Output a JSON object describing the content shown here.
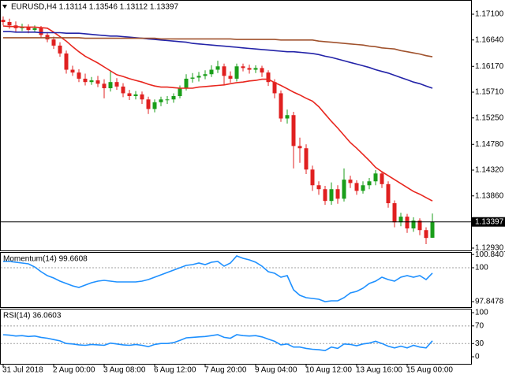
{
  "chart_data": [
    {
      "type": "candlestick",
      "title": "EURUSD,H4  1.13114 1.13546 1.13112 1.13397",
      "categories": [
        "31 Jul 2018",
        null,
        null,
        null,
        null,
        null,
        null,
        null,
        "2 Aug 00:00",
        null,
        null,
        null,
        null,
        null,
        null,
        null,
        "3 Aug 08:00",
        null,
        null,
        null,
        null,
        null,
        null,
        null,
        "6 Aug 12:00",
        null,
        null,
        null,
        null,
        null,
        null,
        null,
        "7 Aug 20:00",
        null,
        null,
        null,
        null,
        null,
        null,
        null,
        "9 Aug 04:00",
        null,
        null,
        null,
        null,
        null,
        null,
        null,
        "10 Aug 12:00",
        null,
        null,
        null,
        null,
        null,
        null,
        null,
        "13 Aug 16:00",
        null,
        null,
        null,
        null,
        null,
        null,
        null,
        "15 Aug 00:00",
        null,
        null,
        null,
        null
      ],
      "open": [
        1.17,
        1.1696,
        1.169,
        1.1685,
        1.1687,
        1.1682,
        1.1685,
        1.1673,
        1.1665,
        1.1654,
        1.164,
        1.1611,
        1.1606,
        1.1595,
        1.1589,
        1.1592,
        1.1586,
        1.1578,
        1.1589,
        1.1581,
        1.1569,
        1.1564,
        1.1567,
        1.1558,
        1.1541,
        1.1553,
        1.1558,
        1.1558,
        1.1564,
        1.1578,
        1.1595,
        1.1597,
        1.16,
        1.1603,
        1.1611,
        1.1617,
        1.16,
        1.1595,
        1.1617,
        1.1614,
        1.1611,
        1.1614,
        1.1606,
        1.1589,
        1.1569,
        1.1524,
        1.153,
        1.1475,
        1.1471,
        1.1433,
        1.1405,
        1.1398,
        1.1377,
        1.1398,
        1.1381,
        1.1415,
        1.1409,
        1.1395,
        1.1405,
        1.1412,
        1.1426,
        1.1407,
        1.1373,
        1.1339,
        1.1349,
        1.1328,
        1.1342,
        1.1325,
        1.13114
      ],
      "high": [
        1.1706,
        1.1702,
        1.1697,
        1.1693,
        1.1692,
        1.169,
        1.1689,
        1.1678,
        1.167,
        1.166,
        1.1645,
        1.1618,
        1.1612,
        1.1604,
        1.1598,
        1.16,
        1.1594,
        1.161,
        1.1596,
        1.1587,
        1.1575,
        1.1573,
        1.1572,
        1.1563,
        1.1558,
        1.1563,
        1.1564,
        1.1569,
        1.1583,
        1.1603,
        1.1605,
        1.1607,
        1.161,
        1.1619,
        1.1627,
        1.1622,
        1.1608,
        1.1622,
        1.1622,
        1.162,
        1.1619,
        1.1618,
        1.161,
        1.1594,
        1.1574,
        1.154,
        1.1536,
        1.149,
        1.1478,
        1.144,
        1.1412,
        1.1404,
        1.141,
        1.1405,
        1.1435,
        1.1422,
        1.1414,
        1.1412,
        1.1418,
        1.1432,
        1.143,
        1.1412,
        1.1378,
        1.1356,
        1.1354,
        1.1348,
        1.1346,
        1.133,
        1.13546
      ],
      "low": [
        1.169,
        1.1684,
        1.1679,
        1.168,
        1.1676,
        1.1677,
        1.1668,
        1.166,
        1.1648,
        1.1634,
        1.1604,
        1.16,
        1.1589,
        1.1583,
        1.1584,
        1.158,
        1.156,
        1.1572,
        1.1575,
        1.1562,
        1.1557,
        1.1558,
        1.155,
        1.1532,
        1.1535,
        1.1546,
        1.155,
        1.1552,
        1.156,
        1.1574,
        1.1588,
        1.159,
        1.1594,
        1.1598,
        1.1605,
        1.1583,
        1.1588,
        1.159,
        1.1608,
        1.1604,
        1.1605,
        1.1598,
        1.1582,
        1.156,
        1.1518,
        1.1515,
        1.1435,
        1.1445,
        1.1425,
        1.1395,
        1.1388,
        1.137,
        1.137,
        1.1372,
        1.1376,
        1.14,
        1.1388,
        1.139,
        1.1398,
        1.1405,
        1.14,
        1.1365,
        1.133,
        1.1332,
        1.132,
        1.1322,
        1.1316,
        1.13,
        1.13112
      ],
      "close": [
        1.1696,
        1.169,
        1.1685,
        1.1687,
        1.1682,
        1.1685,
        1.1673,
        1.1665,
        1.1654,
        1.164,
        1.1611,
        1.1606,
        1.1595,
        1.1589,
        1.1592,
        1.1586,
        1.1578,
        1.1589,
        1.1581,
        1.1569,
        1.1564,
        1.1567,
        1.1558,
        1.1541,
        1.1553,
        1.1558,
        1.1558,
        1.1564,
        1.1578,
        1.1595,
        1.1597,
        1.16,
        1.1603,
        1.1611,
        1.1617,
        1.16,
        1.1595,
        1.1617,
        1.1614,
        1.1611,
        1.1614,
        1.1606,
        1.1589,
        1.1569,
        1.1524,
        1.153,
        1.1475,
        1.1471,
        1.1433,
        1.1405,
        1.1398,
        1.1377,
        1.1398,
        1.1381,
        1.1415,
        1.1409,
        1.1395,
        1.1405,
        1.1412,
        1.1426,
        1.1407,
        1.1373,
        1.1339,
        1.1349,
        1.1328,
        1.1342,
        1.1325,
        1.1311,
        1.13397
      ],
      "up_color": "#1a9e1a",
      "down_color": "#e02020",
      "series": [
        {
          "color": "#e8261e",
          "values": [
            1.1689,
            1.1688,
            1.1688,
            1.1687,
            1.1687,
            1.1687,
            1.1686,
            1.1685,
            1.1678,
            1.167,
            1.1662,
            1.1652,
            1.1643,
            1.1635,
            1.1629,
            1.1623,
            1.1616,
            1.1609,
            1.1602,
            1.1599,
            1.1595,
            1.1592,
            1.1589,
            1.1585,
            1.1582,
            1.158,
            1.158,
            1.1579,
            1.1578,
            1.1578,
            1.1578,
            1.158,
            1.1581,
            1.1582,
            1.1583,
            1.1584,
            1.1586,
            1.1588,
            1.1589,
            1.1591,
            1.1592,
            1.1594,
            1.1594,
            1.1588,
            1.1583,
            1.1577,
            1.1571,
            1.1566,
            1.156,
            1.1555,
            1.1545,
            1.1532,
            1.1519,
            1.1507,
            1.1494,
            1.1481,
            1.1471,
            1.146,
            1.1449,
            1.1437,
            1.1429,
            1.1422,
            1.1415,
            1.1408,
            1.1401,
            1.1394,
            1.1389,
            1.1383,
            1.1377
          ]
        },
        {
          "color": "#2323a8",
          "values": [
            1.1679,
            1.1679,
            1.1678,
            1.1678,
            1.1678,
            1.1678,
            1.1677,
            1.1677,
            1.1677,
            1.1677,
            1.1676,
            1.1676,
            1.1676,
            1.1675,
            1.1674,
            1.1673,
            1.1672,
            1.1671,
            1.1671,
            1.167,
            1.1669,
            1.1668,
            1.1667,
            1.1666,
            1.1665,
            1.1664,
            1.1663,
            1.1662,
            1.1661,
            1.166,
            1.1658,
            1.1657,
            1.1656,
            1.1655,
            1.1654,
            1.1653,
            1.1652,
            1.1651,
            1.165,
            1.1649,
            1.1648,
            1.1647,
            1.1646,
            1.1645,
            1.1644,
            1.1643,
            1.1643,
            1.1642,
            1.1641,
            1.164,
            1.1638,
            1.1635,
            1.1633,
            1.163,
            1.1627,
            1.1624,
            1.1621,
            1.1618,
            1.1615,
            1.1611,
            1.1608,
            1.1605,
            1.1601,
            1.1597,
            1.1593,
            1.1589,
            1.1586,
            1.1582,
            1.1578
          ]
        },
        {
          "color": "#a0522d",
          "values": [
            1.1668,
            1.1668,
            1.1668,
            1.1668,
            1.1668,
            1.1668,
            1.1668,
            1.1668,
            1.1668,
            1.1668,
            1.1668,
            1.1668,
            1.1668,
            1.1667,
            1.1667,
            1.1667,
            1.1667,
            1.1667,
            1.1667,
            1.1667,
            1.1667,
            1.1667,
            1.1667,
            1.1667,
            1.1667,
            1.1666,
            1.1666,
            1.1666,
            1.1666,
            1.1666,
            1.1666,
            1.1666,
            1.1666,
            1.1666,
            1.1666,
            1.1666,
            1.1666,
            1.1665,
            1.1665,
            1.1665,
            1.1665,
            1.1665,
            1.1665,
            1.1665,
            1.1664,
            1.1664,
            1.1664,
            1.1664,
            1.1664,
            1.1664,
            1.1662,
            1.1661,
            1.166,
            1.1659,
            1.1658,
            1.1657,
            1.1656,
            1.1655,
            1.1653,
            1.1652,
            1.165,
            1.1649,
            1.1648,
            1.1645,
            1.1643,
            1.1641,
            1.1639,
            1.1636,
            1.1634
          ]
        }
      ],
      "price_line": 1.13397,
      "ylim": [
        1.12888,
        1.17353
      ],
      "yticks": [
        {
          "value": 1.171,
          "label": "1.17100"
        },
        {
          "value": 1.1664,
          "label": "1.16640"
        },
        {
          "value": 1.1617,
          "label": "1.16170"
        },
        {
          "value": 1.1571,
          "label": "1.15710"
        },
        {
          "value": 1.1525,
          "label": "1.15250"
        },
        {
          "value": 1.1478,
          "label": "1.14780"
        },
        {
          "value": 1.1432,
          "label": "1.14320"
        },
        {
          "value": 1.1386,
          "label": "1.13860"
        },
        {
          "value": 1.1293,
          "label": "1.12930"
        }
      ]
    },
    {
      "type": "line",
      "title": "Momentum(14) 99.6608",
      "color": "#1e90ff",
      "values": [
        100.4,
        100.4,
        100.35,
        100.3,
        100.25,
        100.05,
        99.75,
        99.5,
        99.35,
        99.15,
        99.0,
        98.85,
        98.75,
        98.9,
        99.05,
        99.15,
        99.2,
        99.15,
        99.1,
        99.1,
        99.1,
        99.1,
        99.15,
        99.25,
        99.4,
        99.55,
        99.7,
        99.85,
        100.0,
        100.15,
        100.2,
        100.3,
        100.2,
        100.35,
        100.4,
        100.1,
        100.3,
        100.75,
        100.6,
        100.5,
        100.35,
        100.1,
        99.75,
        99.65,
        99.4,
        99.5,
        98.6,
        98.25,
        98.1,
        98.05,
        98.0,
        97.85,
        97.9,
        97.9,
        98.1,
        98.4,
        98.5,
        98.7,
        99.0,
        99.15,
        99.4,
        99.25,
        99.15,
        99.4,
        99.5,
        99.4,
        99.5,
        99.25,
        99.6608
      ],
      "ylim": [
        97.5,
        101
      ],
      "yticks": [
        100.8407,
        100,
        97.8478
      ],
      "levels": [
        100
      ]
    },
    {
      "type": "line",
      "title": "RSI(14) 36.0603",
      "color": "#1e90ff",
      "values": [
        50,
        49,
        47,
        48,
        46,
        47,
        44,
        42,
        39,
        36,
        30,
        29,
        27,
        26,
        28,
        27,
        26,
        31,
        29,
        27,
        26,
        28,
        26,
        23,
        28,
        30,
        30,
        32,
        37,
        43,
        44,
        45,
        46,
        48,
        50,
        44,
        42,
        50,
        48,
        47,
        48,
        45,
        40,
        35,
        27,
        29,
        22,
        22,
        19,
        17,
        16,
        14,
        22,
        19,
        29,
        28,
        25,
        29,
        31,
        35,
        30,
        24,
        20,
        24,
        20,
        26,
        22,
        20,
        36.0603
      ],
      "ylim": [
        -16,
        109
      ],
      "yticks": [
        100,
        70,
        30,
        0
      ],
      "levels": [
        70,
        30
      ]
    }
  ]
}
